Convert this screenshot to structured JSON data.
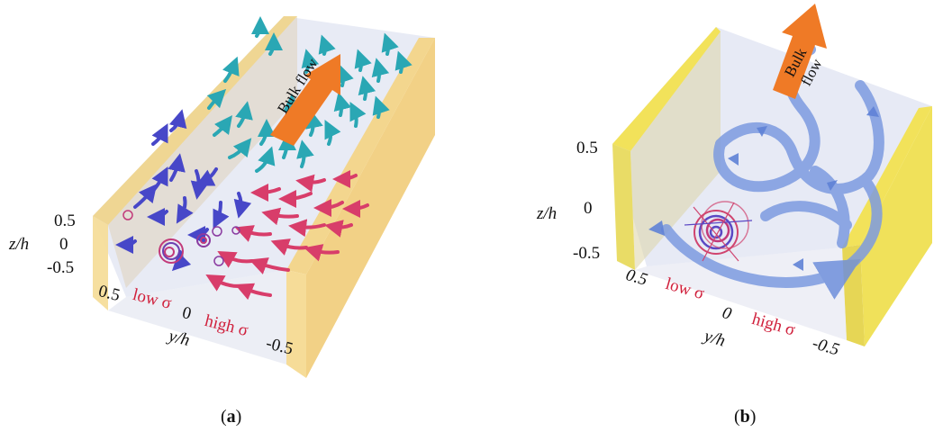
{
  "panels": [
    {
      "id": "a",
      "caption_open": "(",
      "caption_letter": "a",
      "caption_close": ")",
      "arrow_label": "Bulk flow",
      "z_axis_label": "z/h",
      "z_ticks": [
        "0.5",
        "0",
        "-0.5"
      ],
      "y_axis_label": "y/h",
      "y_ticks": [
        "0.5",
        "0",
        "-0.5"
      ],
      "low_sigma": "low σ",
      "high_sigma": "high σ"
    },
    {
      "id": "b",
      "caption_open": "(",
      "caption_letter": "b",
      "caption_close": ")",
      "arrow_label_line1": "Bulk",
      "arrow_label_line2": "flow",
      "z_axis_label": "z/h",
      "z_ticks": [
        "0.5",
        "0",
        "-0.5"
      ],
      "y_axis_label": "y/h",
      "y_ticks": [
        "0.5",
        "0",
        "-0.5"
      ],
      "low_sigma": "low σ",
      "high_sigma": "high σ"
    }
  ],
  "colors": {
    "wall_a": "#f3d58f",
    "wall_b": "#f2e25a",
    "floor": "#dfe3f1",
    "teal_arrows": "#2aa7b4",
    "blue_arrows": "#4747c8",
    "pink_arrows": "#d83d6a",
    "streamline": "#7d9be0",
    "bulk_arrow": "#ef7a26",
    "label_red": "#d0203c"
  }
}
